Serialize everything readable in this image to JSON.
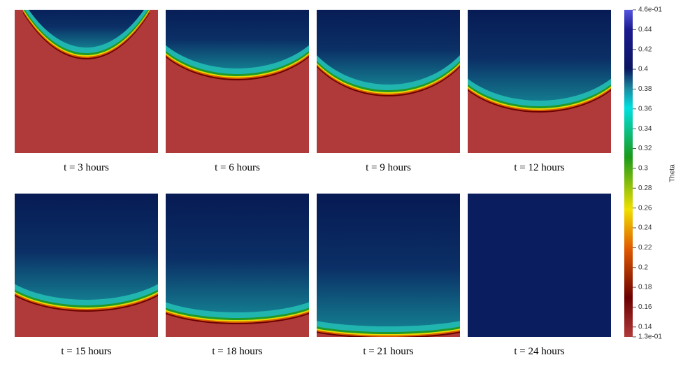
{
  "panels": [
    {
      "label": "t = 3 hours"
    },
    {
      "label": "t = 6 hours"
    },
    {
      "label": "t = 9 hours"
    },
    {
      "label": "t = 12 hours"
    },
    {
      "label": "t = 15 hours"
    },
    {
      "label": "t = 18 hours"
    },
    {
      "label": "t = 21 hours"
    },
    {
      "label": "t = 24 hours"
    }
  ],
  "colorbar": {
    "title": "Theta",
    "range": [
      0.13,
      0.46
    ],
    "ticks": [
      {
        "value": 0.46,
        "label": "4.6e-01"
      },
      0.44,
      0.42,
      0.4,
      0.38,
      0.36,
      0.34,
      0.32,
      0.3,
      0.28,
      0.26,
      0.24,
      0.22,
      0.2,
      0.18,
      0.16,
      0.14,
      {
        "value": 0.13,
        "label": "1.3e-01"
      }
    ]
  }
}
